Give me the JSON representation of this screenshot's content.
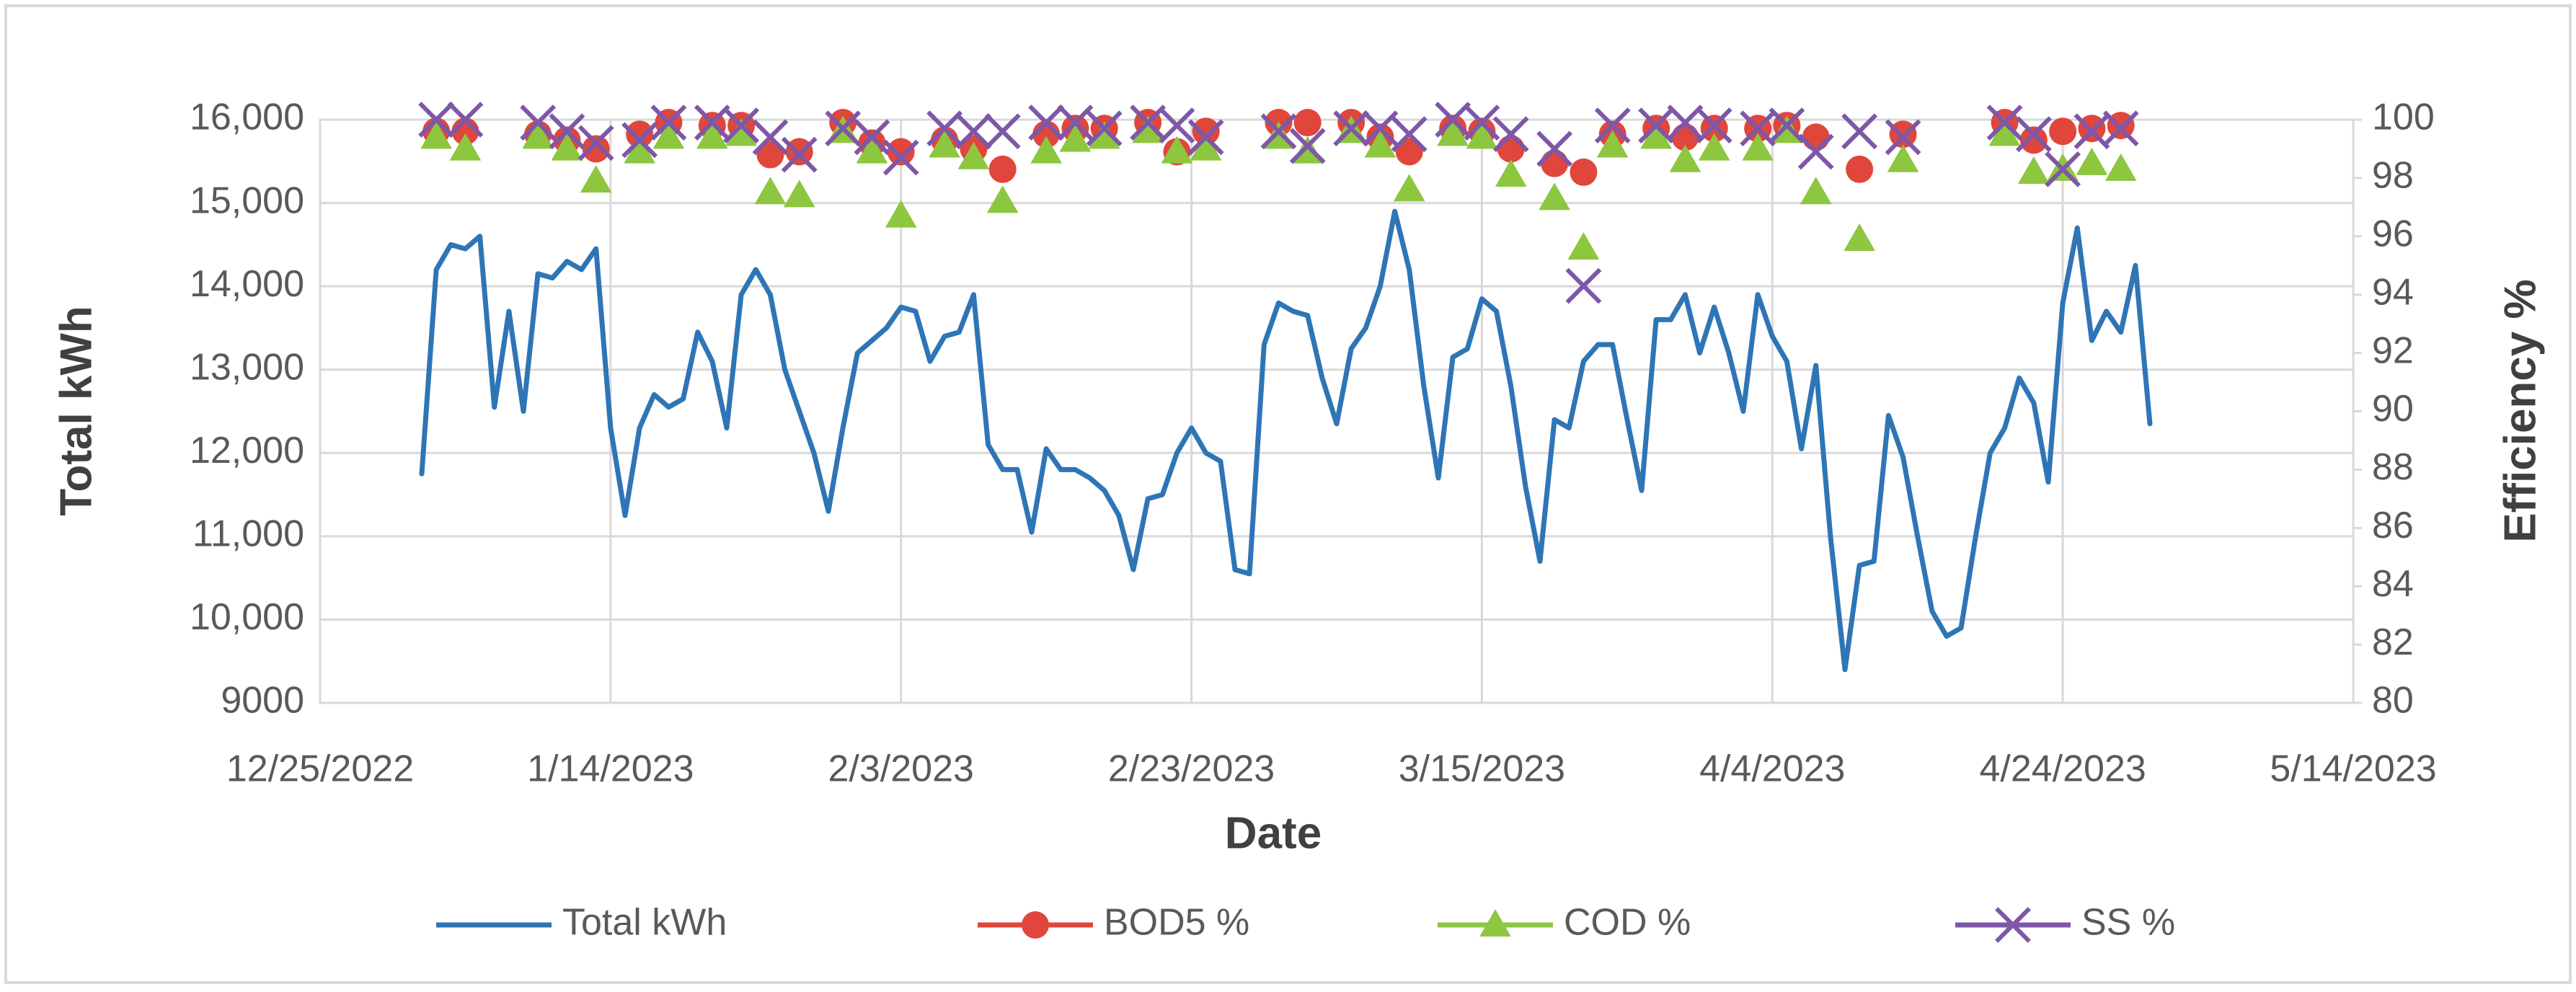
{
  "chart_data": {
    "type": "line",
    "x_label": "Date",
    "y_label": "Total kWh",
    "y2_label": "Efficiency %",
    "xlim": [
      "2022-12-25",
      "2023-05-14"
    ],
    "xticks": [
      {
        "value": "2022-12-25",
        "label": "12/25/2022"
      },
      {
        "value": "2023-01-14",
        "label": "1/14/2023"
      },
      {
        "value": "2023-02-03",
        "label": "2/3/2023"
      },
      {
        "value": "2023-02-23",
        "label": "2/23/2023"
      },
      {
        "value": "2023-03-15",
        "label": "3/15/2023"
      },
      {
        "value": "2023-04-04",
        "label": "4/4/2023"
      },
      {
        "value": "2023-04-24",
        "label": "4/24/2023"
      },
      {
        "value": "2023-05-14",
        "label": "5/14/2023"
      }
    ],
    "ylim": [
      9000,
      16000
    ],
    "yticks": [
      9000,
      {
        "value": 10000,
        "label": "10,000"
      },
      {
        "value": 11000,
        "label": "11,000"
      },
      {
        "value": 12000,
        "label": "12,000"
      },
      {
        "value": 13000,
        "label": "13,000"
      },
      {
        "value": 14000,
        "label": "14,000"
      },
      {
        "value": 15000,
        "label": "15,000"
      },
      {
        "value": 16000,
        "label": "16,000"
      }
    ],
    "y2lim": [
      80,
      100
    ],
    "y2ticks": [
      80,
      82,
      84,
      86,
      88,
      90,
      92,
      94,
      96,
      98,
      100
    ],
    "grid": true,
    "legend": "bottom",
    "series": [
      {
        "name": "Total kWh",
        "type": "line",
        "marker": "none",
        "color": "#2e75b6",
        "x": [
          "2023-01-01",
          "2023-01-02",
          "2023-01-03",
          "2023-01-04",
          "2023-01-05",
          "2023-01-06",
          "2023-01-07",
          "2023-01-08",
          "2023-01-09",
          "2023-01-10",
          "2023-01-11",
          "2023-01-12",
          "2023-01-13",
          "2023-01-14",
          "2023-01-15",
          "2023-01-16",
          "2023-01-17",
          "2023-01-18",
          "2023-01-19",
          "2023-01-20",
          "2023-01-21",
          "2023-01-22",
          "2023-01-23",
          "2023-01-24",
          "2023-01-25",
          "2023-01-26",
          "2023-01-27",
          "2023-01-28",
          "2023-01-29",
          "2023-01-30",
          "2023-01-31",
          "2023-02-01",
          "2023-02-02",
          "2023-02-03",
          "2023-02-04",
          "2023-02-05",
          "2023-02-06",
          "2023-02-07",
          "2023-02-08",
          "2023-02-09",
          "2023-02-10",
          "2023-02-11",
          "2023-02-12",
          "2023-02-13",
          "2023-02-14",
          "2023-02-15",
          "2023-02-16",
          "2023-02-17",
          "2023-02-18",
          "2023-02-19",
          "2023-02-20",
          "2023-02-21",
          "2023-02-22",
          "2023-02-23",
          "2023-02-24",
          "2023-02-25",
          "2023-02-26",
          "2023-02-27",
          "2023-02-28",
          "2023-03-01",
          "2023-03-02",
          "2023-03-03",
          "2023-03-04",
          "2023-03-05",
          "2023-03-06",
          "2023-03-07",
          "2023-03-08",
          "2023-03-09",
          "2023-03-10",
          "2023-03-11",
          "2023-03-12",
          "2023-03-13",
          "2023-03-14",
          "2023-03-15",
          "2023-03-16",
          "2023-03-17",
          "2023-03-18",
          "2023-03-19",
          "2023-03-20",
          "2023-03-21",
          "2023-03-22",
          "2023-03-23",
          "2023-03-24",
          "2023-03-25",
          "2023-03-26",
          "2023-03-27",
          "2023-03-28",
          "2023-03-29",
          "2023-03-30",
          "2023-03-31",
          "2023-04-01",
          "2023-04-02",
          "2023-04-03",
          "2023-04-04",
          "2023-04-05",
          "2023-04-06",
          "2023-04-07",
          "2023-04-08",
          "2023-04-09",
          "2023-04-10",
          "2023-04-11",
          "2023-04-12",
          "2023-04-13",
          "2023-04-14",
          "2023-04-15",
          "2023-04-16",
          "2023-04-17",
          "2023-04-18",
          "2023-04-19",
          "2023-04-20",
          "2023-04-21",
          "2023-04-22",
          "2023-04-23",
          "2023-04-24",
          "2023-04-25",
          "2023-04-26",
          "2023-04-27",
          "2023-04-28",
          "2023-04-29",
          "2023-04-30"
        ],
        "values": [
          11750,
          14200,
          14500,
          14450,
          14600,
          12550,
          13700,
          12500,
          14150,
          14100,
          14300,
          14200,
          14450,
          12300,
          11250,
          12300,
          12700,
          12550,
          12650,
          13450,
          13100,
          12300,
          13900,
          14200,
          13900,
          13000,
          12500,
          12000,
          11300,
          12300,
          13200,
          13350,
          13500,
          13750,
          13700,
          13100,
          13400,
          13450,
          13900,
          12100,
          11800,
          11800,
          11050,
          12050,
          11800,
          11800,
          11700,
          11550,
          11250,
          10600,
          11450,
          11500,
          12000,
          12300,
          12000,
          11900,
          10600,
          10550,
          13300,
          13800,
          13700,
          13650,
          12900,
          12350,
          13250,
          13500,
          14000,
          14900,
          14200,
          12800,
          11700,
          13150,
          13250,
          13850,
          13700,
          12800,
          11600,
          10700,
          12400,
          12300,
          13100,
          13300,
          13300,
          12400,
          11550,
          13600,
          13600,
          13900,
          13200,
          13750,
          13200,
          12500,
          13900,
          13400,
          13100,
          12050,
          13050,
          11000,
          9400,
          10650,
          10700,
          12450,
          11950,
          11000,
          10100,
          9800,
          9900,
          11000,
          12000,
          12300,
          12900,
          12600,
          11650,
          13800,
          14700,
          13350,
          13700,
          13450,
          14250,
          12350
        ]
      },
      {
        "name": "BOD5 %",
        "type": "scatter",
        "marker": "circle",
        "color": "#e0463c",
        "axis": "y2",
        "x": [
          "2023-01-02",
          "2023-01-04",
          "2023-01-09",
          "2023-01-11",
          "2023-01-13",
          "2023-01-16",
          "2023-01-18",
          "2023-01-21",
          "2023-01-23",
          "2023-01-25",
          "2023-01-27",
          "2023-01-30",
          "2023-02-01",
          "2023-02-03",
          "2023-02-06",
          "2023-02-08",
          "2023-02-10",
          "2023-02-13",
          "2023-02-15",
          "2023-02-17",
          "2023-02-20",
          "2023-02-22",
          "2023-02-24",
          "2023-03-01",
          "2023-03-03",
          "2023-03-06",
          "2023-03-08",
          "2023-03-10",
          "2023-03-13",
          "2023-03-15",
          "2023-03-17",
          "2023-03-20",
          "2023-03-22",
          "2023-03-24",
          "2023-03-27",
          "2023-03-29",
          "2023-03-31",
          "2023-04-03",
          "2023-04-05",
          "2023-04-07",
          "2023-04-10",
          "2023-04-13",
          "2023-04-20",
          "2023-04-22",
          "2023-04-24",
          "2023-04-26",
          "2023-04-28"
        ],
        "values": [
          99.6,
          99.6,
          99.5,
          99.3,
          99.0,
          99.5,
          99.9,
          99.8,
          99.8,
          98.8,
          98.9,
          99.9,
          99.2,
          98.9,
          99.3,
          99.0,
          98.3,
          99.5,
          99.7,
          99.7,
          99.9,
          98.9,
          99.6,
          99.9,
          99.9,
          99.9,
          99.4,
          98.9,
          99.7,
          99.6,
          99.0,
          98.5,
          98.2,
          99.5,
          99.7,
          99.4,
          99.7,
          99.7,
          99.8,
          99.4,
          98.3,
          99.5,
          99.9,
          99.3,
          99.6,
          99.7,
          99.8
        ]
      },
      {
        "name": "COD %",
        "type": "scatter",
        "marker": "triangle",
        "color": "#8dc63f",
        "axis": "y2",
        "x": [
          "2023-01-02",
          "2023-01-04",
          "2023-01-09",
          "2023-01-11",
          "2023-01-13",
          "2023-01-16",
          "2023-01-18",
          "2023-01-21",
          "2023-01-23",
          "2023-01-25",
          "2023-01-27",
          "2023-01-30",
          "2023-02-01",
          "2023-02-03",
          "2023-02-06",
          "2023-02-08",
          "2023-02-10",
          "2023-02-13",
          "2023-02-15",
          "2023-02-17",
          "2023-02-20",
          "2023-02-22",
          "2023-02-24",
          "2023-03-01",
          "2023-03-03",
          "2023-03-06",
          "2023-03-08",
          "2023-03-10",
          "2023-03-13",
          "2023-03-15",
          "2023-03-17",
          "2023-03-20",
          "2023-03-22",
          "2023-03-24",
          "2023-03-27",
          "2023-03-29",
          "2023-03-31",
          "2023-04-03",
          "2023-04-05",
          "2023-04-07",
          "2023-04-10",
          "2023-04-13",
          "2023-04-20",
          "2023-04-22",
          "2023-04-24",
          "2023-04-26",
          "2023-04-28"
        ],
        "values": [
          99.4,
          99.0,
          99.4,
          99.0,
          97.9,
          98.9,
          99.4,
          99.4,
          99.5,
          97.5,
          97.4,
          99.6,
          98.9,
          96.7,
          99.1,
          98.7,
          97.2,
          98.9,
          99.3,
          99.4,
          99.6,
          98.9,
          99.0,
          99.4,
          98.9,
          99.6,
          99.1,
          97.6,
          99.5,
          99.4,
          98.1,
          97.3,
          95.6,
          99.1,
          99.4,
          98.6,
          99.0,
          99.0,
          99.6,
          97.5,
          95.9,
          98.6,
          99.5,
          98.2,
          98.3,
          98.5,
          98.3
        ]
      },
      {
        "name": "SS %",
        "type": "scatter",
        "marker": "x",
        "color": "#7e57a7",
        "axis": "y2",
        "x": [
          "2023-01-02",
          "2023-01-04",
          "2023-01-09",
          "2023-01-11",
          "2023-01-13",
          "2023-01-16",
          "2023-01-18",
          "2023-01-21",
          "2023-01-23",
          "2023-01-25",
          "2023-01-27",
          "2023-01-30",
          "2023-02-01",
          "2023-02-03",
          "2023-02-06",
          "2023-02-08",
          "2023-02-10",
          "2023-02-13",
          "2023-02-15",
          "2023-02-17",
          "2023-02-20",
          "2023-02-22",
          "2023-02-24",
          "2023-03-01",
          "2023-03-03",
          "2023-03-06",
          "2023-03-08",
          "2023-03-10",
          "2023-03-13",
          "2023-03-15",
          "2023-03-17",
          "2023-03-20",
          "2023-03-22",
          "2023-03-24",
          "2023-03-27",
          "2023-03-29",
          "2023-03-31",
          "2023-04-03",
          "2023-04-05",
          "2023-04-07",
          "2023-04-10",
          "2023-04-13",
          "2023-04-20",
          "2023-04-22",
          "2023-04-24",
          "2023-04-26",
          "2023-04-28"
        ],
        "values": [
          100,
          100,
          99.9,
          99.6,
          99.2,
          99.3,
          99.9,
          99.9,
          99.8,
          99.4,
          98.8,
          99.7,
          99.4,
          98.7,
          99.7,
          99.6,
          99.6,
          99.9,
          99.9,
          99.7,
          99.9,
          99.8,
          99.4,
          99.6,
          99.1,
          99.7,
          99.7,
          99.5,
          100,
          99.9,
          99.5,
          99.0,
          94.3,
          99.8,
          99.8,
          99.9,
          99.8,
          99.7,
          99.8,
          98.9,
          99.6,
          99.4,
          99.9,
          99.5,
          98.3,
          99.6,
          99.7
        ]
      }
    ]
  }
}
